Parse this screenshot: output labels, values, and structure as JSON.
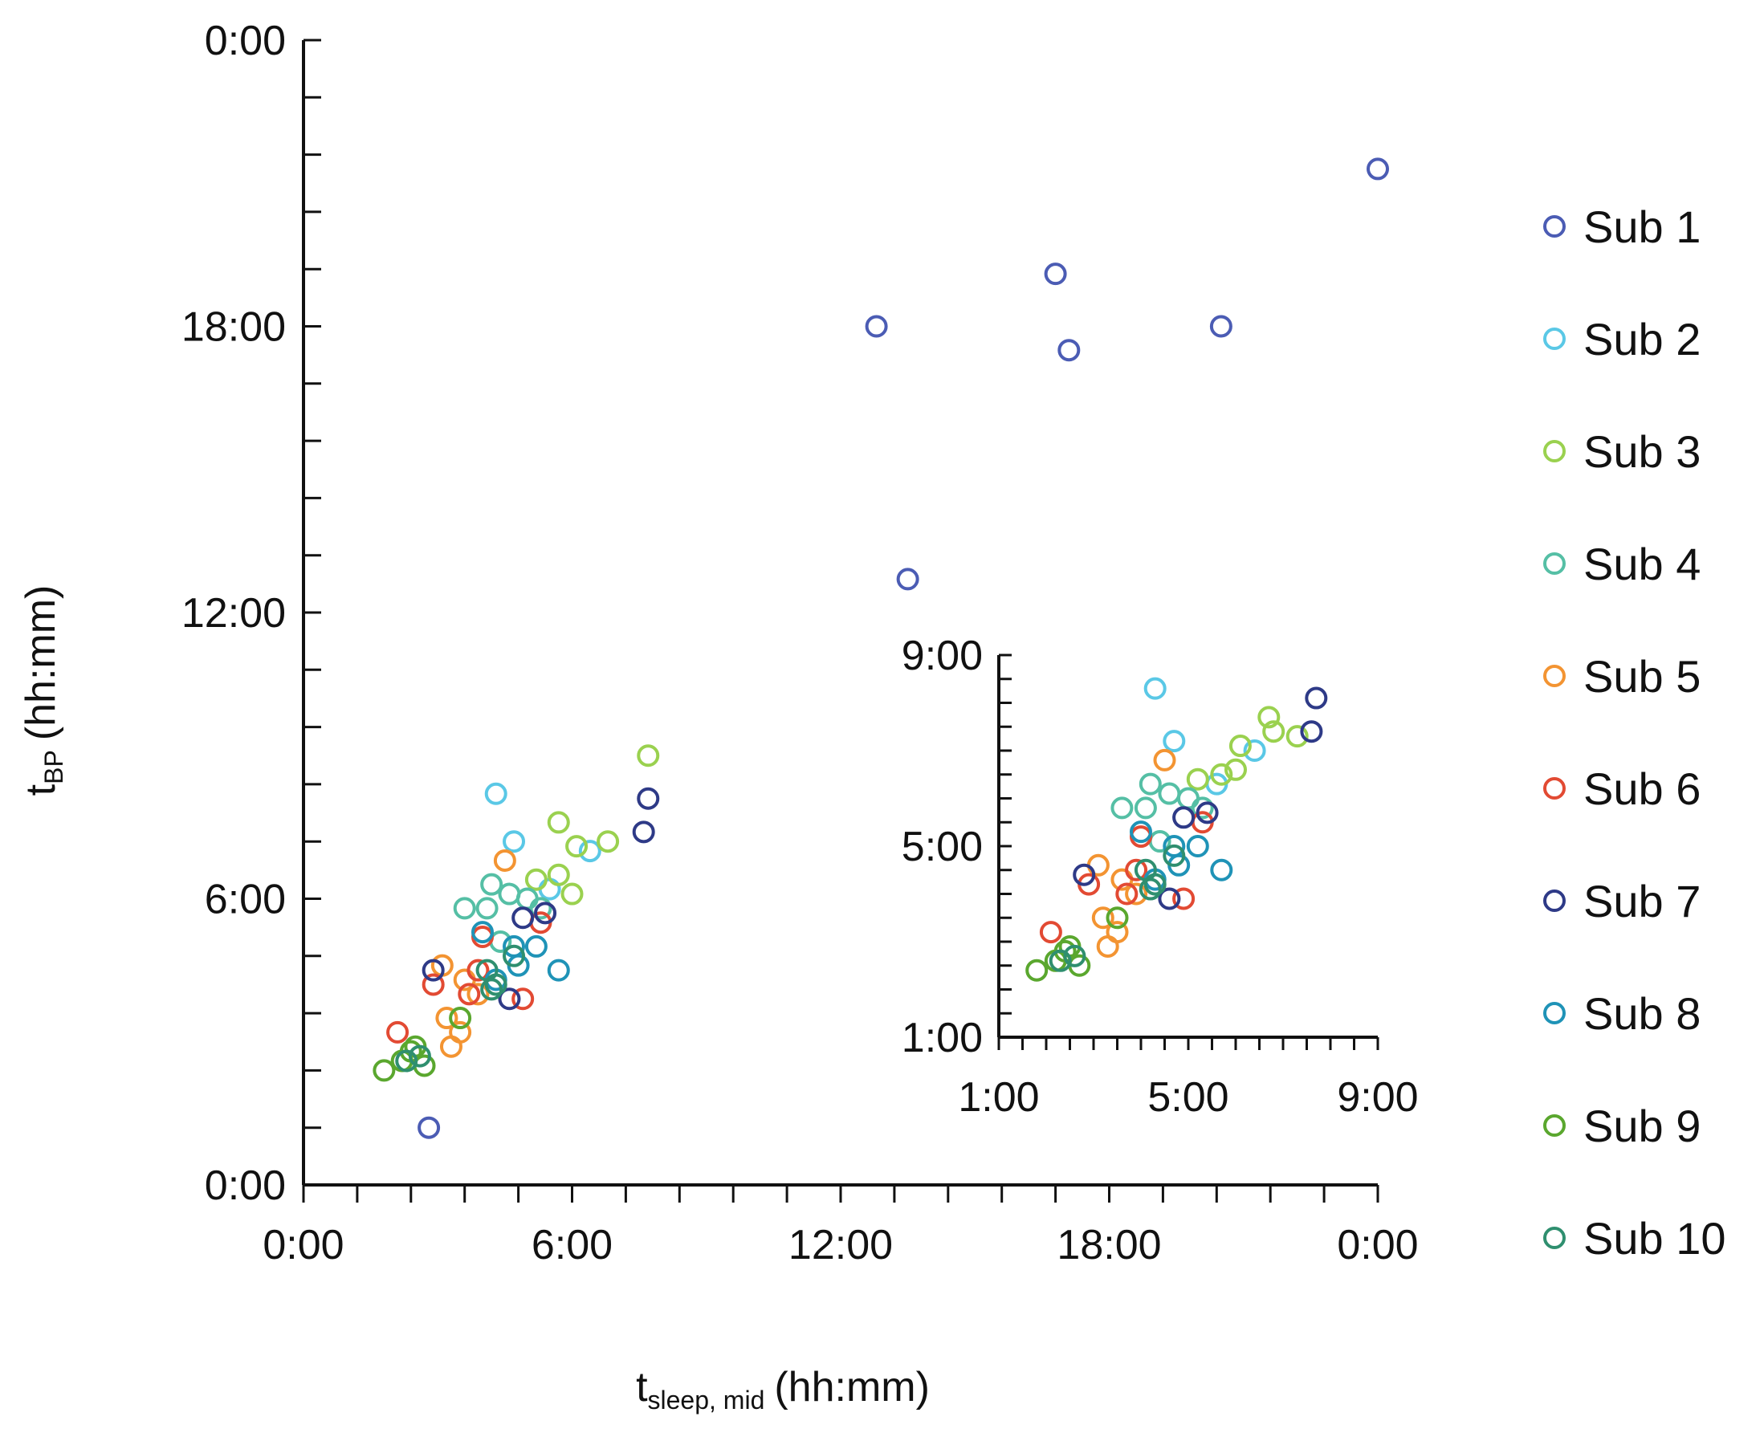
{
  "chart_data": [
    {
      "type": "scatter",
      "name": "main",
      "xlabel": {
        "main": "t",
        "sub": "sleep, mid",
        "unit": "(hh:mm)"
      },
      "ylabel": {
        "main": "t",
        "sub": "BP",
        "unit": "(hh:mm)"
      },
      "xlim": [
        0,
        24
      ],
      "ylim": [
        0,
        24
      ],
      "x_ticks": [
        "0:00",
        "6:00",
        "12:00",
        "18:00",
        "0:00"
      ],
      "y_ticks": [
        "0:00",
        "6:00",
        "12:00",
        "18:00",
        "0:00"
      ],
      "grid": false,
      "series": [
        {
          "name": "Sub 1",
          "color": "#4b5cb4",
          "points": [
            [
              2.8,
              1.2
            ],
            [
              12.8,
              18.0
            ],
            [
              13.5,
              12.7
            ],
            [
              16.8,
              19.1
            ],
            [
              17.1,
              17.5
            ],
            [
              20.5,
              18.0
            ],
            [
              24.0,
              21.3
            ]
          ]
        },
        {
          "name": "Sub 2",
          "color": "#5ac8e6",
          "points": [
            [
              4.3,
              8.2
            ],
            [
              4.7,
              7.2
            ],
            [
              6.4,
              7.0
            ],
            [
              5.5,
              6.2
            ]
          ]
        },
        {
          "name": "Sub 3",
          "color": "#9ad14f",
          "points": [
            [
              7.7,
              9.0
            ],
            [
              5.7,
              7.6
            ],
            [
              6.1,
              7.1
            ],
            [
              6.8,
              7.2
            ],
            [
              5.2,
              6.4
            ],
            [
              5.7,
              6.5
            ],
            [
              6.0,
              6.1
            ]
          ]
        },
        {
          "name": "Sub 4",
          "color": "#55bfa5",
          "points": [
            [
              3.6,
              5.8
            ],
            [
              4.1,
              5.8
            ],
            [
              4.2,
              6.3
            ],
            [
              4.6,
              6.1
            ],
            [
              5.0,
              6.0
            ],
            [
              5.3,
              5.8
            ],
            [
              4.4,
              5.1
            ]
          ]
        },
        {
          "name": "Sub 5",
          "color": "#f39432",
          "points": [
            [
              4.5,
              6.8
            ],
            [
              3.1,
              4.6
            ],
            [
              3.6,
              4.3
            ],
            [
              3.2,
              3.5
            ],
            [
              3.5,
              3.2
            ],
            [
              3.3,
              2.9
            ],
            [
              3.9,
              4.0
            ]
          ]
        },
        {
          "name": "Sub 6",
          "color": "#e24a33",
          "points": [
            [
              2.1,
              3.2
            ],
            [
              2.9,
              4.2
            ],
            [
              3.9,
              4.5
            ],
            [
              4.0,
              5.2
            ],
            [
              5.3,
              5.5
            ],
            [
              3.7,
              4.0
            ],
            [
              4.9,
              3.9
            ]
          ]
        },
        {
          "name": "Sub 7",
          "color": "#2e3a87",
          "points": [
            [
              2.9,
              4.5
            ],
            [
              4.9,
              5.6
            ],
            [
              5.4,
              5.7
            ],
            [
              7.6,
              7.4
            ],
            [
              7.7,
              8.1
            ],
            [
              4.6,
              3.9
            ]
          ]
        },
        {
          "name": "Sub 8",
          "color": "#1f93b7",
          "points": [
            [
              4.0,
              5.3
            ],
            [
              4.7,
              5.0
            ],
            [
              5.2,
              5.0
            ],
            [
              5.7,
              4.5
            ],
            [
              4.8,
              4.6
            ],
            [
              4.3,
              4.3
            ]
          ]
        },
        {
          "name": "Sub 9",
          "color": "#5aa72e",
          "points": [
            [
              1.8,
              2.4
            ],
            [
              2.2,
              2.6
            ],
            [
              2.5,
              2.9
            ],
            [
              2.7,
              2.5
            ],
            [
              3.5,
              3.5
            ],
            [
              2.4,
              2.8
            ]
          ]
        },
        {
          "name": "Sub 10",
          "color": "#2f8f6f",
          "points": [
            [
              2.3,
              2.6
            ],
            [
              2.6,
              2.7
            ],
            [
              4.1,
              4.5
            ],
            [
              4.3,
              4.2
            ],
            [
              4.7,
              4.8
            ],
            [
              4.2,
              4.1
            ]
          ]
        }
      ],
      "legend": {
        "placement": "right",
        "entries": [
          "Sub 1",
          "Sub 2",
          "Sub 3",
          "Sub 4",
          "Sub 5",
          "Sub 6",
          "Sub 7",
          "Sub 8",
          "Sub 9",
          "Sub 10"
        ]
      }
    },
    {
      "type": "scatter",
      "name": "inset",
      "xlim": [
        1,
        9
      ],
      "ylim": [
        1,
        9
      ],
      "x_ticks": [
        "1:00",
        "5:00",
        "9:00"
      ],
      "y_ticks": [
        "1:00",
        "5:00",
        "9:00"
      ],
      "grid": false,
      "series": [
        {
          "name": "Sub 2",
          "color": "#5ac8e6",
          "points": [
            [
              4.3,
              8.3
            ],
            [
              4.7,
              7.2
            ],
            [
              6.4,
              7.0
            ],
            [
              5.6,
              6.3
            ]
          ]
        },
        {
          "name": "Sub 3",
          "color": "#9ad14f",
          "points": [
            [
              6.7,
              7.7
            ],
            [
              5.7,
              6.5
            ],
            [
              6.1,
              7.1
            ],
            [
              6.8,
              7.4
            ],
            [
              5.2,
              6.4
            ],
            [
              6.0,
              6.6
            ],
            [
              7.3,
              7.3
            ]
          ]
        },
        {
          "name": "Sub 4",
          "color": "#55bfa5",
          "points": [
            [
              3.6,
              5.8
            ],
            [
              4.1,
              5.8
            ],
            [
              4.2,
              6.3
            ],
            [
              4.6,
              6.1
            ],
            [
              5.0,
              6.0
            ],
            [
              5.3,
              5.8
            ],
            [
              4.4,
              5.1
            ]
          ]
        },
        {
          "name": "Sub 5",
          "color": "#f39432",
          "points": [
            [
              4.5,
              6.8
            ],
            [
              3.1,
              4.6
            ],
            [
              3.6,
              4.3
            ],
            [
              3.2,
              3.5
            ],
            [
              3.5,
              3.2
            ],
            [
              3.3,
              2.9
            ],
            [
              3.9,
              4.0
            ]
          ]
        },
        {
          "name": "Sub 6",
          "color": "#e24a33",
          "points": [
            [
              2.1,
              3.2
            ],
            [
              2.9,
              4.2
            ],
            [
              3.9,
              4.5
            ],
            [
              4.0,
              5.2
            ],
            [
              5.3,
              5.5
            ],
            [
              3.7,
              4.0
            ],
            [
              4.9,
              3.9
            ]
          ]
        },
        {
          "name": "Sub 7",
          "color": "#2e3a87",
          "points": [
            [
              2.8,
              4.4
            ],
            [
              4.9,
              5.6
            ],
            [
              5.4,
              5.7
            ],
            [
              7.6,
              7.4
            ],
            [
              7.7,
              8.1
            ],
            [
              4.6,
              3.9
            ]
          ]
        },
        {
          "name": "Sub 8",
          "color": "#1f93b7",
          "points": [
            [
              4.0,
              5.3
            ],
            [
              4.7,
              5.0
            ],
            [
              5.2,
              5.0
            ],
            [
              5.7,
              4.5
            ],
            [
              4.8,
              4.6
            ],
            [
              4.3,
              4.3
            ]
          ]
        },
        {
          "name": "Sub 9",
          "color": "#5aa72e",
          "points": [
            [
              1.8,
              2.4
            ],
            [
              2.2,
              2.6
            ],
            [
              2.5,
              2.9
            ],
            [
              2.7,
              2.5
            ],
            [
              3.5,
              3.5
            ],
            [
              2.4,
              2.8
            ]
          ]
        },
        {
          "name": "Sub 10",
          "color": "#2f8f6f",
          "points": [
            [
              2.3,
              2.6
            ],
            [
              2.6,
              2.7
            ],
            [
              4.1,
              4.5
            ],
            [
              4.3,
              4.2
            ],
            [
              4.7,
              4.8
            ],
            [
              4.2,
              4.1
            ]
          ]
        }
      ]
    }
  ]
}
